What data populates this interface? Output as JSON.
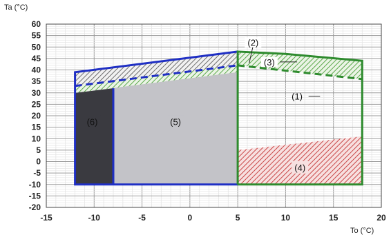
{
  "axes": {
    "y_label": "Ta (°C)",
    "x_label": "To (°C)",
    "x_range": [
      -15,
      20
    ],
    "y_range": [
      -20,
      60
    ],
    "x_ticks": [
      -15,
      -10,
      -5,
      0,
      5,
      10,
      15,
      20
    ],
    "y_ticks": [
      60,
      55,
      50,
      45,
      40,
      35,
      30,
      25,
      20,
      15,
      10,
      5,
      0,
      -5,
      -10,
      -15,
      -20
    ]
  },
  "labels": {
    "region_1": "(1)",
    "region_2": "(2)",
    "region_3": "(3)",
    "region_4": "(4)",
    "region_5": "(5)",
    "region_6": "(6)"
  },
  "colors": {
    "blue_border": "#1f2fc4",
    "green_border": "#2e8b2e",
    "gray_fill": "#c3c3c8",
    "dark_fill": "#3a3a40",
    "red_hatch": "#c84646",
    "green_hatch": "#5aa84a",
    "gray_hatch": "#6c6c6c"
  },
  "regions": {
    "blue_area": [
      [
        -12,
        -10
      ],
      [
        -12,
        39
      ],
      [
        5,
        48
      ],
      [
        5,
        -10
      ]
    ],
    "dark_area": [
      [
        -12,
        -10
      ],
      [
        -12,
        30
      ],
      [
        -8,
        32
      ],
      [
        -8,
        -10
      ]
    ],
    "green_area": [
      [
        5,
        -10
      ],
      [
        5,
        48
      ],
      [
        18,
        44
      ],
      [
        18,
        -10
      ]
    ],
    "hatch_region_4": [
      [
        5,
        5
      ],
      [
        18,
        11
      ],
      [
        18,
        -10
      ],
      [
        5,
        -10
      ]
    ],
    "blue_dashed_line": [
      [
        -12,
        33
      ],
      [
        5,
        42
      ]
    ],
    "green_dashed_line": [
      [
        5,
        42
      ],
      [
        18,
        36
      ]
    ]
  }
}
